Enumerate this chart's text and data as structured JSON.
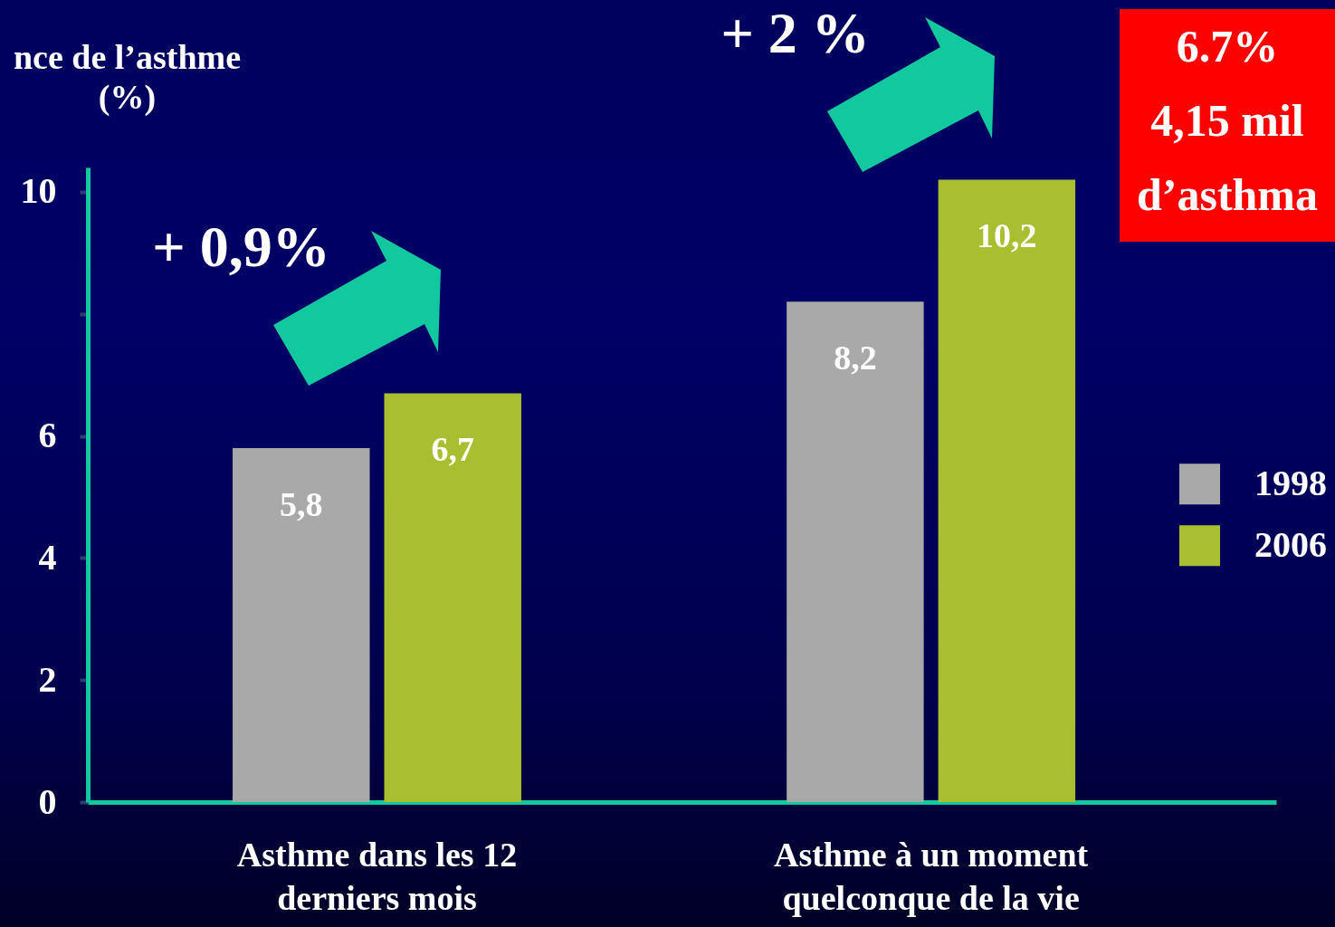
{
  "chart_data": {
    "type": "bar",
    "categories": [
      "Asthme dans les 12\nderniers mois",
      "Asthme à un moment\nquelconque de la vie"
    ],
    "ylabel": "nce de l’asthme\n(%)",
    "series": [
      {
        "name": "1998",
        "color": "#a9a9a9",
        "values": [
          5.8,
          8.2
        ],
        "value_labels": [
          "5,8",
          "8,2"
        ]
      },
      {
        "name": "2006",
        "color": "#aabf2f",
        "values": [
          6.7,
          10.2
        ],
        "value_labels": [
          "6,7",
          "10,2"
        ]
      }
    ],
    "ylim": [
      0,
      10.4
    ],
    "yticks": [
      0,
      2,
      4,
      6,
      {
        "value": 8,
        "label": null
      },
      10
    ],
    "legend": "right",
    "annotations": [
      "+ 0,9%",
      "+ 2 %",
      "6.7%\n4,15 mil\nd’asthma"
    ]
  }
}
